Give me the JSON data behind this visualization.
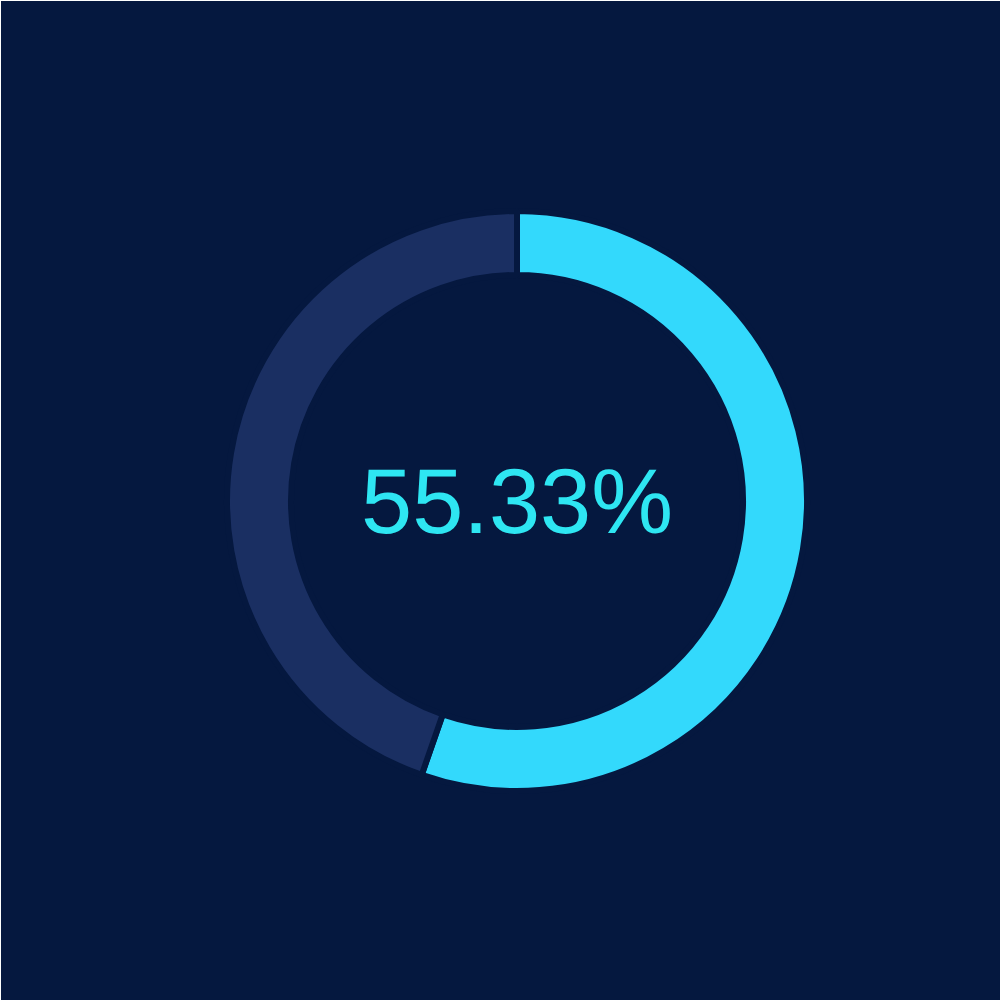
{
  "chart_data": {
    "type": "donut",
    "categories": [
      null,
      null
    ],
    "values": [
      55.33,
      44.67
    ],
    "colors": [
      "#33d9fc",
      "#1a2f62"
    ],
    "annotations": [
      "55.33%"
    ]
  }
}
